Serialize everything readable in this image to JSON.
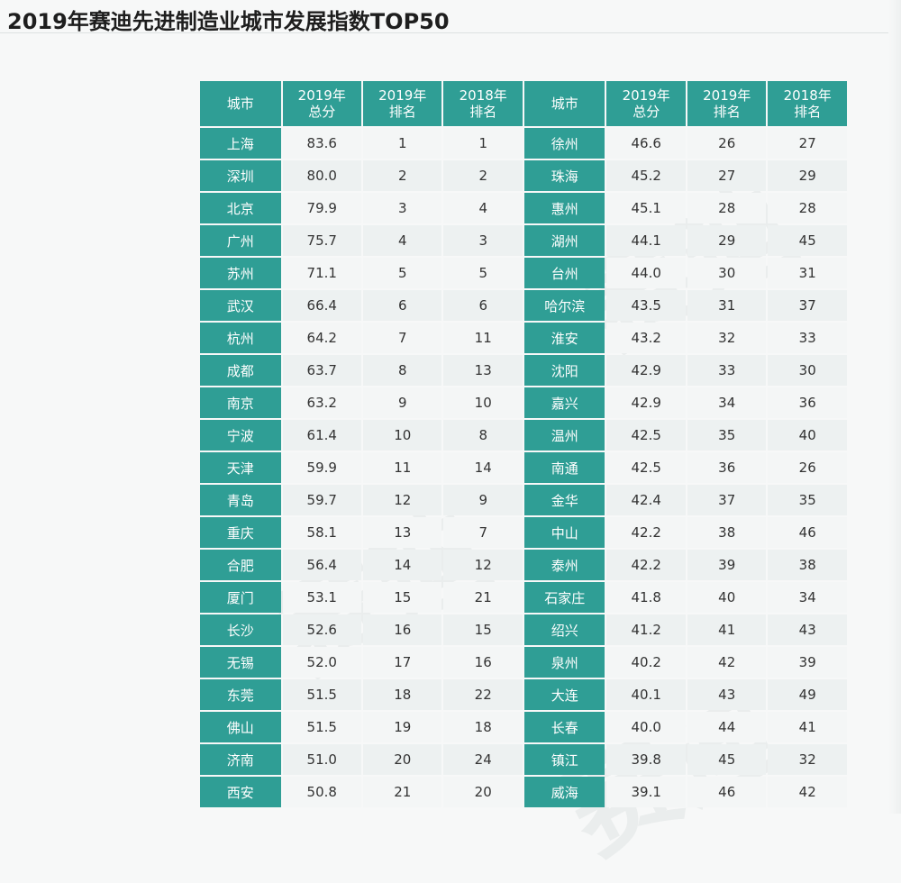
{
  "title": "2019年赛迪先进制造业城市发展指数TOP50",
  "headers": [
    "城市",
    "2019年\n总分",
    "2019年\n排名",
    "2018年\n排名",
    "城市",
    "2019年\n总分",
    "2019年\n排名",
    "2018年\n排名"
  ],
  "header_lines": [
    [
      "城市",
      ""
    ],
    [
      "2019年",
      "总分"
    ],
    [
      "2019年",
      "排名"
    ],
    [
      "2018年",
      "排名"
    ],
    [
      "城市",
      ""
    ],
    [
      "2019年",
      "总分"
    ],
    [
      "2019年",
      "排名"
    ],
    [
      "2018年",
      "排名"
    ]
  ],
  "rows": [
    [
      "上海",
      "83.6",
      "1",
      "1",
      "徐州",
      "46.6",
      "26",
      "27"
    ],
    [
      "深圳",
      "80.0",
      "2",
      "2",
      "珠海",
      "45.2",
      "27",
      "29"
    ],
    [
      "北京",
      "79.9",
      "3",
      "4",
      "惠州",
      "45.1",
      "28",
      "28"
    ],
    [
      "广州",
      "75.7",
      "4",
      "3",
      "湖州",
      "44.1",
      "29",
      "45"
    ],
    [
      "苏州",
      "71.1",
      "5",
      "5",
      "台州",
      "44.0",
      "30",
      "31"
    ],
    [
      "武汉",
      "66.4",
      "6",
      "6",
      "哈尔滨",
      "43.5",
      "31",
      "37"
    ],
    [
      "杭州",
      "64.2",
      "7",
      "11",
      "淮安",
      "43.2",
      "32",
      "33"
    ],
    [
      "成都",
      "63.7",
      "8",
      "13",
      "沈阳",
      "42.9",
      "33",
      "30"
    ],
    [
      "南京",
      "63.2",
      "9",
      "10",
      "嘉兴",
      "42.9",
      "34",
      "36"
    ],
    [
      "宁波",
      "61.4",
      "10",
      "8",
      "温州",
      "42.5",
      "35",
      "40"
    ],
    [
      "天津",
      "59.9",
      "11",
      "14",
      "南通",
      "42.5",
      "36",
      "26"
    ],
    [
      "青岛",
      "59.7",
      "12",
      "9",
      "金华",
      "42.4",
      "37",
      "35"
    ],
    [
      "重庆",
      "58.1",
      "13",
      "7",
      "中山",
      "42.2",
      "38",
      "46"
    ],
    [
      "合肥",
      "56.4",
      "14",
      "12",
      "泰州",
      "42.2",
      "39",
      "38"
    ],
    [
      "厦门",
      "53.1",
      "15",
      "21",
      "石家庄",
      "41.8",
      "40",
      "34"
    ],
    [
      "长沙",
      "52.6",
      "16",
      "15",
      "绍兴",
      "41.2",
      "41",
      "43"
    ],
    [
      "无锡",
      "52.0",
      "17",
      "16",
      "泉州",
      "40.2",
      "42",
      "39"
    ],
    [
      "东莞",
      "51.5",
      "18",
      "22",
      "大连",
      "40.1",
      "43",
      "49"
    ],
    [
      "佛山",
      "51.5",
      "19",
      "18",
      "长春",
      "40.0",
      "44",
      "41"
    ],
    [
      "济南",
      "51.0",
      "20",
      "24",
      "镇江",
      "39.8",
      "45",
      "32"
    ],
    [
      "西安",
      "50.8",
      "21",
      "20",
      "威海",
      "39.1",
      "46",
      "42"
    ]
  ]
}
